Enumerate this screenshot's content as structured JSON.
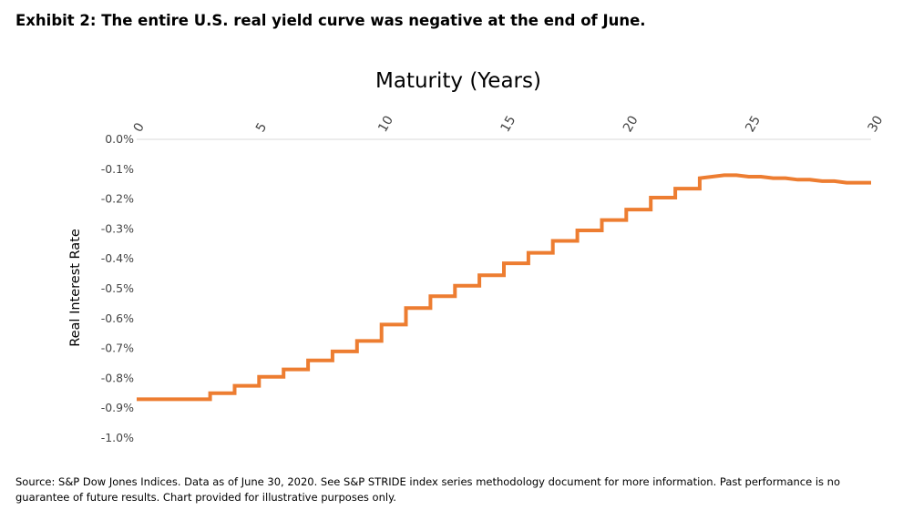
{
  "exhibit_title": "Exhibit 2:  The entire U.S. real yield curve was negative at the end of June.",
  "source_note": "Source:  S&P Dow Jones Indices.  Data as of June 30, 2020.  See S&P STRIDE index series methodology document for more information.  Past performance is no guarantee of future results. Chart provided for illustrative purposes only.",
  "chart_data": {
    "type": "line",
    "title": "",
    "xlabel": "Maturity (Years)",
    "ylabel": "Real Interest Rate",
    "x_axis_position": "top",
    "xlim": [
      0,
      30
    ],
    "ylim": [
      -1.0,
      0.0
    ],
    "x_ticks": [
      "0",
      "5",
      "10",
      "15",
      "20",
      "25",
      "30"
    ],
    "x_tick_values": [
      0,
      5,
      10,
      15,
      20,
      25,
      30
    ],
    "y_ticks": [
      "0.0%",
      "-0.1%",
      "-0.2%",
      "-0.3%",
      "-0.4%",
      "-0.5%",
      "-0.6%",
      "-0.7%",
      "-0.8%",
      "-0.9%",
      "-1.0%"
    ],
    "y_tick_values": [
      0.0,
      -0.1,
      -0.2,
      -0.3,
      -0.4,
      -0.5,
      -0.6,
      -0.7,
      -0.8,
      -0.9,
      -1.0
    ],
    "grid": false,
    "line_color": "#ED7D31",
    "series": [
      {
        "x": [
          0,
          3,
          3,
          4,
          4,
          5,
          5,
          6,
          6,
          7,
          7,
          8,
          8,
          9,
          9,
          10,
          10,
          11,
          11,
          12,
          12,
          13,
          13,
          14,
          14,
          15,
          15,
          16,
          16,
          17,
          17,
          18,
          18,
          19,
          19,
          20,
          20,
          21,
          21,
          22,
          22,
          23,
          23,
          24,
          24.5,
          25,
          25.5,
          26,
          26.5,
          27,
          27.5,
          28,
          28.5,
          29,
          29.5,
          30
        ],
        "y": [
          -0.87,
          -0.87,
          -0.85,
          -0.85,
          -0.825,
          -0.825,
          -0.795,
          -0.795,
          -0.77,
          -0.77,
          -0.74,
          -0.74,
          -0.71,
          -0.71,
          -0.675,
          -0.675,
          -0.62,
          -0.62,
          -0.565,
          -0.565,
          -0.525,
          -0.525,
          -0.49,
          -0.49,
          -0.455,
          -0.455,
          -0.415,
          -0.415,
          -0.38,
          -0.38,
          -0.34,
          -0.34,
          -0.305,
          -0.305,
          -0.27,
          -0.27,
          -0.235,
          -0.235,
          -0.195,
          -0.195,
          -0.165,
          -0.165,
          -0.13,
          -0.12,
          -0.12,
          -0.125,
          -0.125,
          -0.13,
          -0.13,
          -0.135,
          -0.135,
          -0.14,
          -0.14,
          -0.145,
          -0.145,
          -0.145
        ]
      }
    ]
  }
}
